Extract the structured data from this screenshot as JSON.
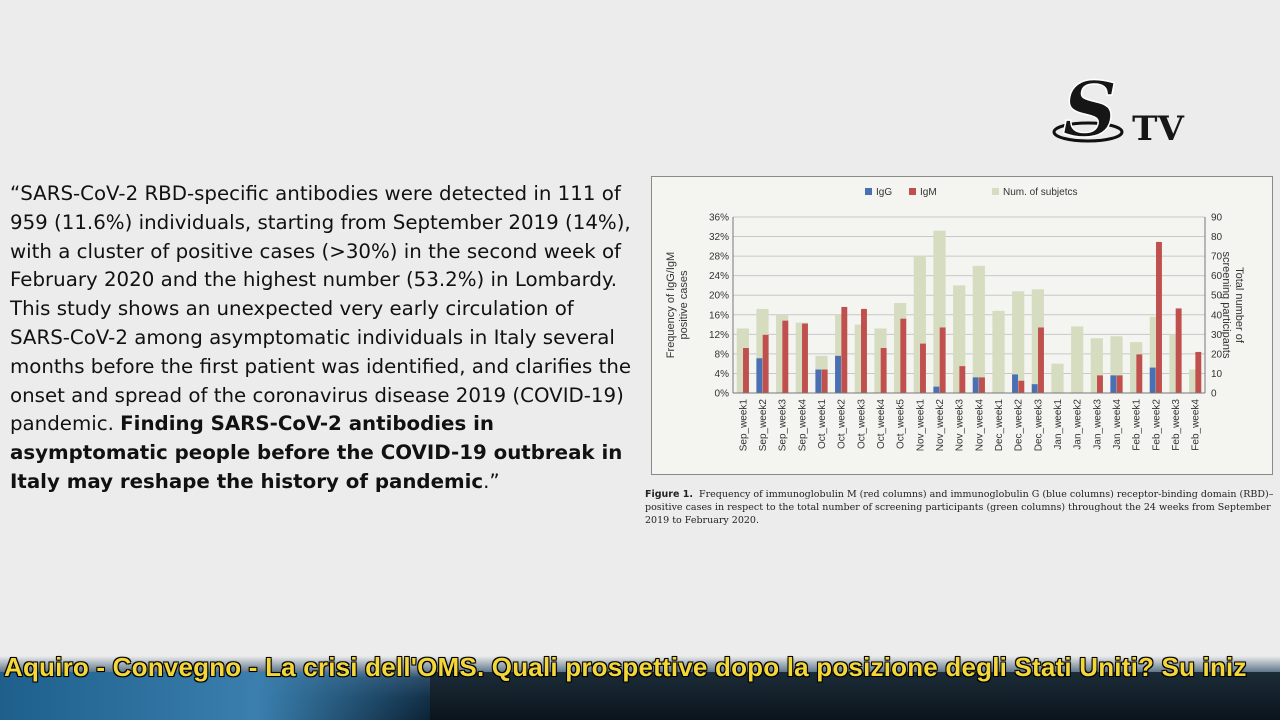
{
  "quote": {
    "open_mark": "“",
    "body": "SARS-CoV-2 RBD-specific antibodies were detected in 111 of 959 (11.6%) individuals, starting from September 2019 (14%), with a cluster of positive cases (>30%) in the second week of February 2020 and the highest number (53.2%) in Lombardy. This study shows an unexpected very early circulation of SARS-CoV-2 among asymptomatic individuals in Italy several months before the first patient was identified, and clarifies the onset and spread of the coronavirus disease 2019 (COVID-19) pandemic. ",
    "bold": "Finding SARS-CoV-2 antibodies in asymptomatic people before the COVID-19 outbreak in Italy may reshape the history of pandemic",
    "close_mark": ".”"
  },
  "logo": {
    "letter": "S",
    "suffix": "TV"
  },
  "caption": {
    "label": "Figure 1.",
    "text": "Frequency of immunoglobulin M (red columns) and immunoglobulin G (blue columns) receptor-binding domain (RBD)–positive cases in respect to the total number of screening participants (green columns) throughout the 24 weeks from September 2019 to February 2020."
  },
  "ticker": {
    "text": "Aquiro - Convegno - La crisi dell'OMS. Quali prospettive dopo la posizione degli Stati Uniti? Su iniz"
  },
  "colors": {
    "igg": "#4a6fb3",
    "igm": "#c0504d",
    "subjects": "#d5dcc0",
    "ticker_text": "#f2d63a"
  },
  "chart_data": {
    "type": "bar",
    "ylabel": "Frequency of IgG/IgM positive cases",
    "y2label": "Total number of screening participants",
    "ylim": [
      0,
      36
    ],
    "y2lim": [
      0,
      90
    ],
    "yticks": [
      "0%",
      "4%",
      "8%",
      "12%",
      "16%",
      "20%",
      "24%",
      "28%",
      "32%",
      "36%"
    ],
    "y2ticks": [
      "0",
      "10",
      "20",
      "30",
      "40",
      "50",
      "60",
      "70",
      "80",
      "90"
    ],
    "legend_position": "top",
    "grid": true,
    "categories": [
      "Sep_week1",
      "Sep_week2",
      "Sep_week3",
      "Sep_week4",
      "Oct_week1",
      "Oct_week2",
      "Oct_week3",
      "Oct_week4",
      "Oct_week5",
      "Nov_week1",
      "Nov_week2",
      "Nov_week3",
      "Nov_week4",
      "Dec_week1",
      "Dec_week2",
      "Dec_week3",
      "Jan_week1",
      "Jan_week2",
      "Jan_week3",
      "Jan_week4",
      "Feb_week1",
      "Feb_week2",
      "Feb_week3",
      "Feb_week4"
    ],
    "series": [
      {
        "name": "IgG",
        "axis": "left",
        "values": [
          0,
          7.1,
          0,
          0,
          4.8,
          7.6,
          0,
          0,
          0,
          0,
          1.3,
          0,
          3.2,
          0,
          3.8,
          1.8,
          0,
          0,
          0,
          3.6,
          0,
          5.2,
          0,
          0
        ]
      },
      {
        "name": "IgM",
        "axis": "left",
        "values": [
          9.2,
          11.9,
          14.8,
          14.2,
          4.8,
          17.6,
          17.2,
          9.2,
          15.2,
          10.1,
          13.4,
          5.5,
          3.2,
          0,
          2.5,
          13.4,
          0,
          0,
          3.6,
          3.6,
          7.9,
          30.9,
          17.3,
          8.4
        ]
      },
      {
        "name": "Num. of subjetcs",
        "axis": "right",
        "values": [
          33,
          43,
          40,
          36,
          19,
          40,
          35,
          33,
          46,
          70,
          83,
          55,
          65,
          42,
          52,
          53,
          15,
          34,
          28,
          29,
          26,
          39,
          30,
          12
        ]
      }
    ]
  }
}
